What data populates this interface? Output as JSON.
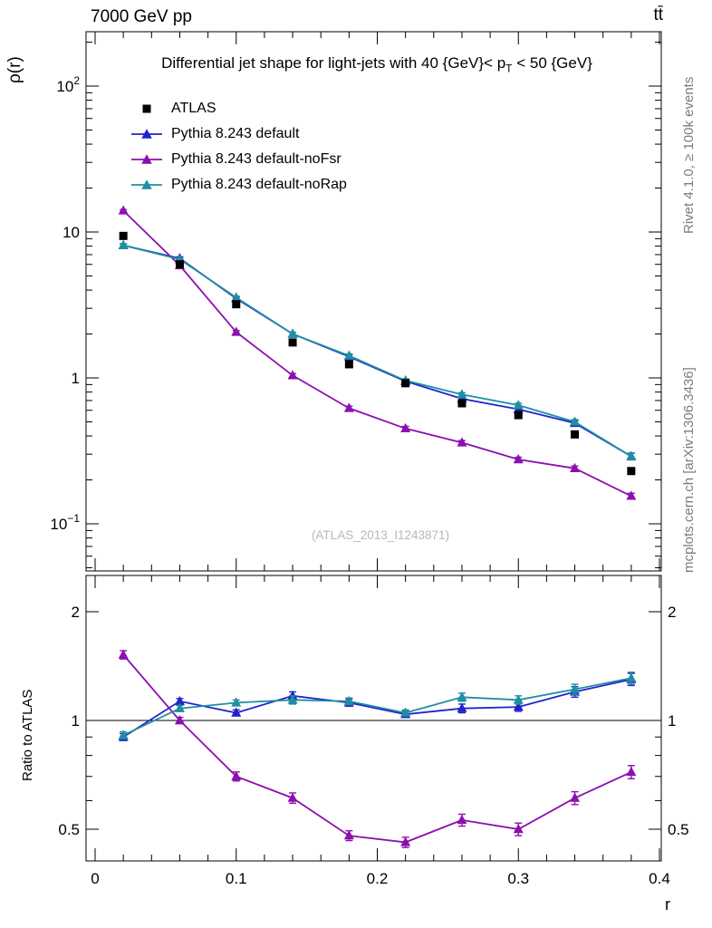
{
  "header": {
    "left": "7000 GeV pp",
    "right": "tt̄"
  },
  "titles": {
    "plot_title_pre": "Differential jet shape for light-jets with 40 {GeV}< p",
    "plot_title_sub": "T",
    "plot_title_post": " < 50 {GeV}",
    "watermark": "(ATLAS_2013_I1243871)"
  },
  "side_labels": {
    "rivet": "Rivet 4.1.0, ≥ 100k events",
    "mcplots": "mcplots.cern.ch [arXiv:1306.3436]"
  },
  "chart_data": {
    "type": "line",
    "title": "Differential jet shape for light-jets with 40 {GeV}< p_T < 50 {GeV}",
    "xlabel": "r",
    "ylabel": "ρ(r)",
    "ratio_ylabel": "Ratio to ATLAS",
    "xlim": [
      0,
      0.4
    ],
    "x": [
      0.02,
      0.06,
      0.1,
      0.14,
      0.18,
      0.22,
      0.26,
      0.3,
      0.34,
      0.38
    ],
    "xticks": [
      {
        "v": 0,
        "label": "0"
      },
      {
        "v": 0.1,
        "label": "0.1"
      },
      {
        "v": 0.2,
        "label": "0.2"
      },
      {
        "v": 0.3,
        "label": "0.3"
      },
      {
        "v": 0.4,
        "label": "0.4"
      }
    ],
    "main": {
      "ylog": true,
      "ylim": [
        0.048,
        235
      ],
      "yticks": [
        {
          "v": 100,
          "base": "10",
          "exp": "2"
        },
        {
          "v": 10,
          "base": "10"
        },
        {
          "v": 1,
          "base": "1"
        },
        {
          "v": 0.1,
          "base": "10",
          "exp": "−1"
        }
      ],
      "series": [
        {
          "name": "ATLAS",
          "marker": "square",
          "color": "#000000",
          "line": false,
          "values": [
            9.4,
            6.0,
            3.2,
            1.75,
            1.24,
            0.92,
            0.67,
            0.556,
            0.41,
            0.23
          ],
          "errors": [
            0.3,
            0.2,
            0.1,
            0.06,
            0.04,
            0.03,
            0.02,
            0.02,
            0.015,
            0.01
          ]
        },
        {
          "name": "Pythia 8.243 default",
          "marker": "triangle",
          "color": "#2222cc",
          "line": true,
          "values": [
            8.1,
            6.6,
            3.5,
            2.0,
            1.4,
            0.95,
            0.72,
            0.61,
            0.49,
            0.29
          ],
          "errors": [
            0.2,
            0.15,
            0.08,
            0.05,
            0.04,
            0.025,
            0.02,
            0.02,
            0.018,
            0.015
          ]
        },
        {
          "name": "Pythia 8.243 default-noFsr",
          "marker": "triangle",
          "color": "#8c0fb0",
          "line": true,
          "values": [
            14.0,
            5.9,
            2.06,
            1.04,
            0.62,
            0.45,
            0.36,
            0.276,
            0.24,
            0.155
          ],
          "errors": [
            0.25,
            0.12,
            0.05,
            0.03,
            0.02,
            0.015,
            0.012,
            0.01,
            0.009,
            0.007
          ]
        },
        {
          "name": "Pythia 8.243 default-noRap",
          "marker": "triangle",
          "color": "#1f8fa2",
          "line": true,
          "values": [
            8.1,
            6.5,
            3.55,
            2.0,
            1.42,
            0.96,
            0.77,
            0.65,
            0.5,
            0.29
          ],
          "errors": [
            0.2,
            0.15,
            0.08,
            0.05,
            0.04,
            0.025,
            0.022,
            0.02,
            0.018,
            0.016
          ]
        }
      ]
    },
    "ratio": {
      "ylog": true,
      "ylim": [
        0.408,
        2.52
      ],
      "baseline": 1,
      "yticks": [
        {
          "v": 2,
          "label": "2"
        },
        {
          "v": 1,
          "label": "1"
        },
        {
          "v": 0.5,
          "label": "0.5"
        }
      ],
      "yminor": [
        0.6,
        0.7,
        0.8,
        0.9
      ],
      "series": [
        {
          "name": "Pythia 8.243 default",
          "color": "#2222cc",
          "values": [
            0.9,
            1.13,
            1.05,
            1.17,
            1.12,
            1.04,
            1.08,
            1.09,
            1.2,
            1.3
          ],
          "errors": [
            0.02,
            0.02,
            0.02,
            0.03,
            0.025,
            0.02,
            0.03,
            0.03,
            0.04,
            0.05
          ]
        },
        {
          "name": "Pythia 8.243 default-noFsr",
          "color": "#8c0fb0",
          "values": [
            1.52,
            1.0,
            0.7,
            0.61,
            0.48,
            0.46,
            0.53,
            0.5,
            0.61,
            0.72
          ],
          "errors": [
            0.04,
            0.02,
            0.02,
            0.02,
            0.015,
            0.015,
            0.02,
            0.02,
            0.025,
            0.03
          ]
        },
        {
          "name": "Pythia 8.243 default-noRap",
          "color": "#1f8fa2",
          "values": [
            0.91,
            1.08,
            1.12,
            1.14,
            1.13,
            1.05,
            1.16,
            1.14,
            1.22,
            1.31
          ],
          "errors": [
            0.02,
            0.02,
            0.02,
            0.03,
            0.025,
            0.02,
            0.03,
            0.03,
            0.04,
            0.05
          ]
        }
      ]
    }
  }
}
